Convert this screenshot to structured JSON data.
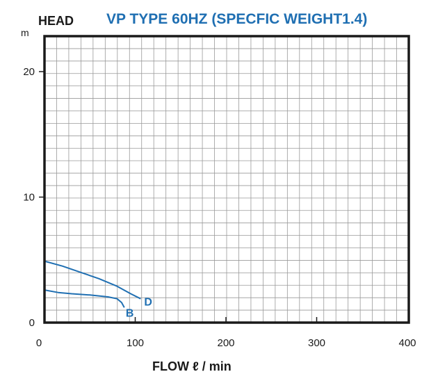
{
  "header": {
    "ylabel": "HEAD",
    "title": "VP TYPE 60HZ (SPECFIC WEIGHT1.4)",
    "yunit": "m"
  },
  "chart_data": {
    "type": "line",
    "title": "VP TYPE 60HZ (SPECFIC WEIGHT1.4)",
    "xlabel": "FLOW ℓ / min",
    "ylabel": "HEAD",
    "yunit": "m",
    "xlim": [
      0,
      400
    ],
    "ylim": [
      0,
      23
    ],
    "x_ticks": [
      "0",
      "100",
      "200",
      "300",
      "400"
    ],
    "y_ticks": [
      "0",
      "10",
      "20"
    ],
    "grid": true,
    "colors": {
      "curve": "#1f6fb2",
      "frame": "#1a1a1a",
      "grid": "#999999"
    },
    "series": [
      {
        "name": "D",
        "x": [
          0,
          20,
          40,
          60,
          80,
          95,
          106
        ],
        "y": [
          4.9,
          4.5,
          4.0,
          3.5,
          2.9,
          2.3,
          1.9
        ]
      },
      {
        "name": "B",
        "x": [
          0,
          15,
          30,
          50,
          70,
          80,
          85,
          88
        ],
        "y": [
          2.6,
          2.4,
          2.3,
          2.2,
          2.05,
          1.9,
          1.6,
          1.2
        ]
      }
    ]
  }
}
